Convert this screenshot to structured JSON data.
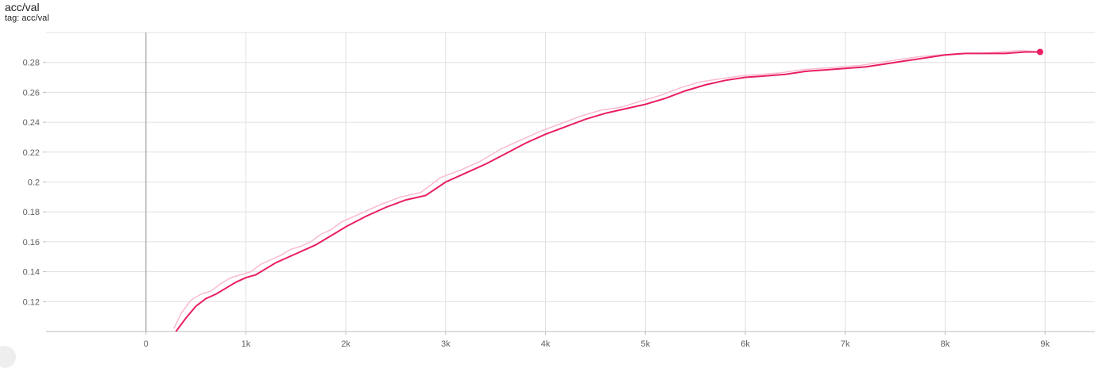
{
  "header": {
    "title": "acc/val",
    "tag": "tag: acc/val"
  },
  "colors": {
    "series": "#e91e63",
    "series_raw": "#f8bbd0",
    "grid": "#e0e0e0",
    "zero_axis": "#9e9e9e",
    "text": "#616161"
  },
  "chart_data": {
    "type": "line",
    "xlim": [
      -1000,
      9500
    ],
    "ylim": [
      0.1,
      0.3
    ],
    "xticks": [
      0,
      1000,
      2000,
      3000,
      4000,
      5000,
      6000,
      7000,
      8000,
      9000
    ],
    "xtick_labels": [
      "0",
      "1k",
      "2k",
      "3k",
      "4k",
      "5k",
      "6k",
      "7k",
      "8k",
      "9k"
    ],
    "yticks": [
      0.12,
      0.14,
      0.16,
      0.18,
      0.2,
      0.22,
      0.24,
      0.26,
      0.28
    ],
    "ytick_labels": [
      "0.12",
      "0.14",
      "0.16",
      "0.18",
      "0.2",
      "0.22",
      "0.24",
      "0.26",
      "0.28"
    ],
    "grid": true,
    "series": [
      {
        "role": "smoothed",
        "x": [
          300,
          400,
          500,
          600,
          700,
          800,
          900,
          1000,
          1100,
          1200,
          1300,
          1400,
          1500,
          1600,
          1700,
          1800,
          1900,
          2000,
          2200,
          2400,
          2600,
          2800,
          3000,
          3200,
          3400,
          3600,
          3800,
          4000,
          4200,
          4400,
          4600,
          4800,
          5000,
          5200,
          5400,
          5600,
          5800,
          6000,
          6200,
          6400,
          6600,
          6800,
          7000,
          7200,
          7400,
          7600,
          7800,
          8000,
          8200,
          8400,
          8600,
          8800,
          8950
        ],
        "y": [
          0.1,
          0.109,
          0.117,
          0.122,
          0.125,
          0.129,
          0.133,
          0.136,
          0.138,
          0.142,
          0.146,
          0.149,
          0.152,
          0.155,
          0.158,
          0.162,
          0.166,
          0.17,
          0.177,
          0.183,
          0.188,
          0.191,
          0.2,
          0.206,
          0.212,
          0.219,
          0.226,
          0.232,
          0.237,
          0.242,
          0.246,
          0.249,
          0.252,
          0.256,
          0.261,
          0.265,
          0.268,
          0.27,
          0.271,
          0.272,
          0.274,
          0.275,
          0.276,
          0.277,
          0.279,
          0.281,
          0.283,
          0.285,
          0.286,
          0.286,
          0.286,
          0.287,
          0.287
        ]
      },
      {
        "role": "raw",
        "x": [
          280,
          350,
          450,
          550,
          650,
          750,
          850,
          950,
          1050,
          1150,
          1250,
          1350,
          1450,
          1550,
          1650,
          1750,
          1850,
          1950,
          2150,
          2350,
          2550,
          2750,
          2950,
          3150,
          3350,
          3550,
          3750,
          3950,
          4150,
          4350,
          4550,
          4750,
          4950,
          5150,
          5350,
          5550,
          5750,
          5950,
          6150,
          6350,
          6550,
          6750,
          6950,
          7150,
          7350,
          7550,
          7750,
          7950,
          8150,
          8350,
          8550,
          8750,
          8950
        ],
        "y": [
          0.102,
          0.112,
          0.121,
          0.125,
          0.127,
          0.132,
          0.136,
          0.138,
          0.14,
          0.145,
          0.148,
          0.151,
          0.155,
          0.157,
          0.16,
          0.165,
          0.168,
          0.173,
          0.179,
          0.185,
          0.19,
          0.193,
          0.203,
          0.208,
          0.214,
          0.222,
          0.228,
          0.234,
          0.239,
          0.244,
          0.248,
          0.25,
          0.254,
          0.258,
          0.263,
          0.267,
          0.269,
          0.271,
          0.272,
          0.273,
          0.275,
          0.276,
          0.277,
          0.278,
          0.28,
          0.282,
          0.284,
          0.285,
          0.286,
          0.286,
          0.287,
          0.288,
          0.287
        ]
      }
    ]
  }
}
